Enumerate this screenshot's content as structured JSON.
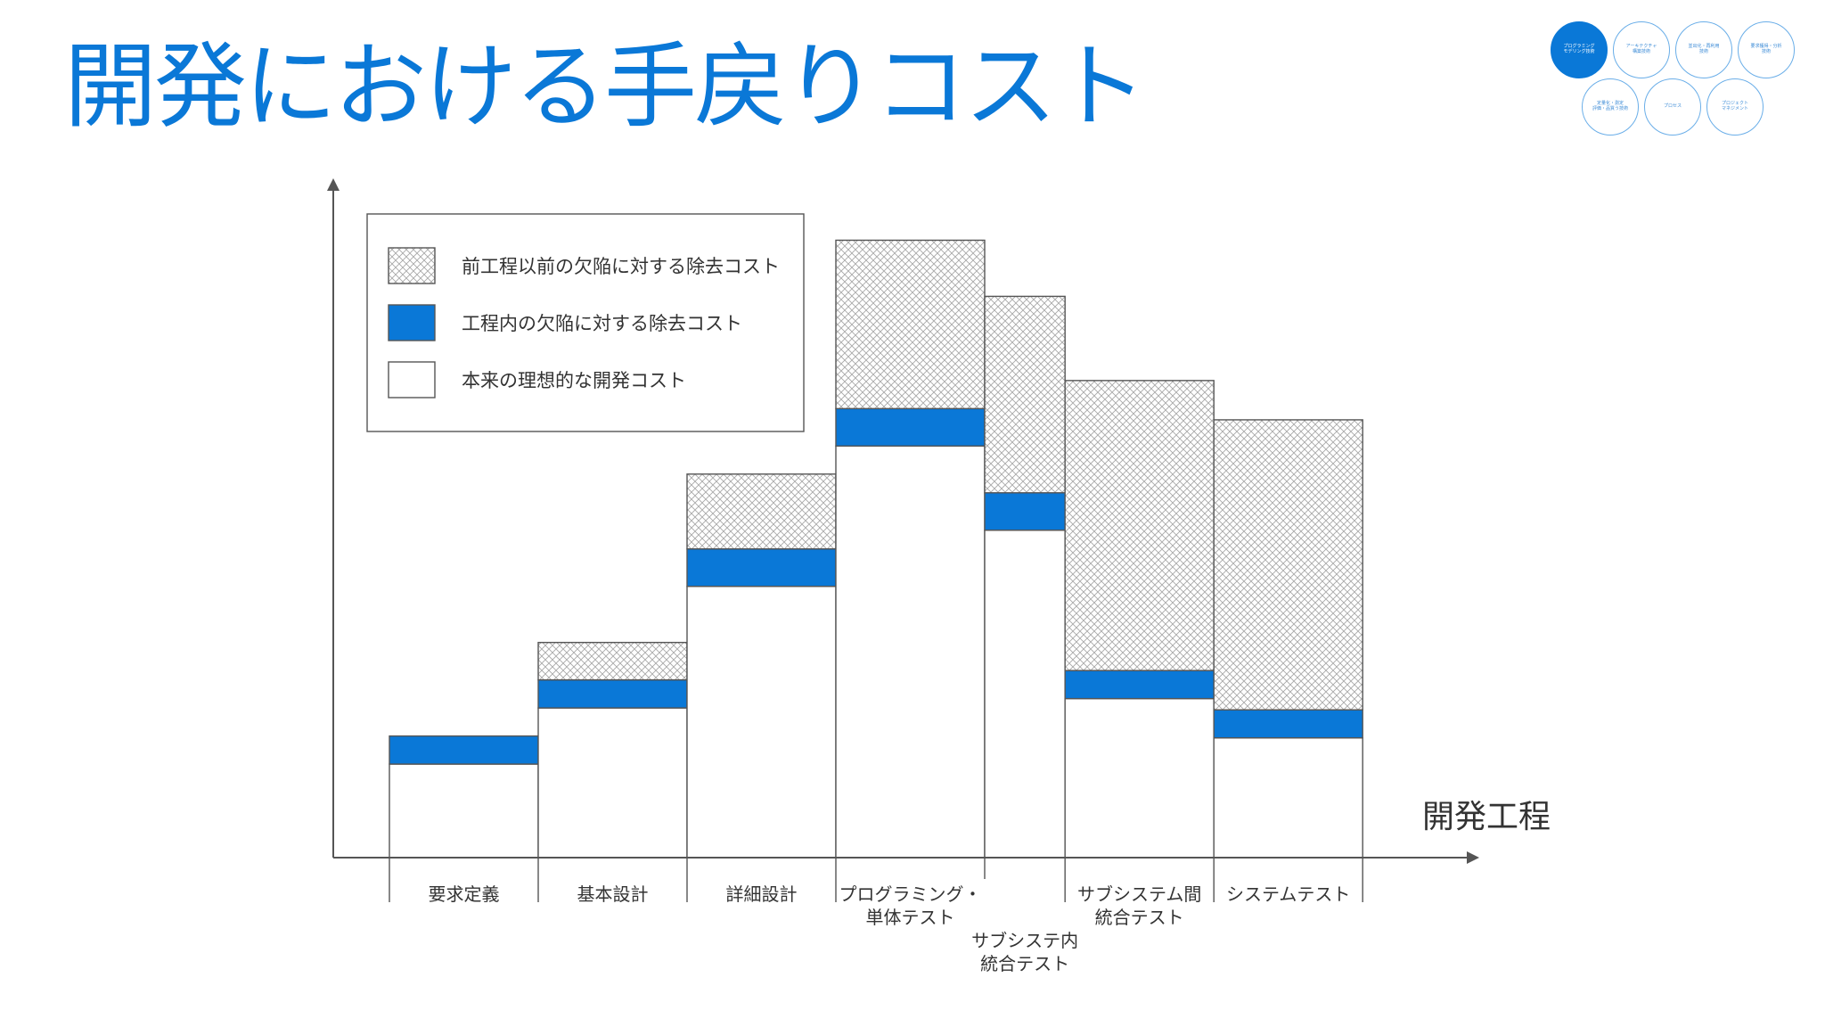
{
  "title": "開発における手戻りコスト",
  "nav": {
    "items": [
      {
        "label": "プログラミング\nモデリング技術",
        "active": true
      },
      {
        "label": "アーキテクチャ\n構築技術",
        "active": false
      },
      {
        "label": "並出化・再利用\n技術",
        "active": false
      },
      {
        "label": "要求獲得・分析\n技術",
        "active": false
      },
      {
        "label": "定量化・測定\n評価・品質う技術",
        "active": false
      },
      {
        "label": "プロセス",
        "active": false
      },
      {
        "label": "プロジェクト\nマネジメント",
        "active": false
      }
    ]
  },
  "colors": {
    "title": "#0a78d7",
    "blue": "#0a78d7",
    "hatch": "#9a9a9a",
    "line": "#555555",
    "text": "#333333"
  },
  "chart_data": {
    "type": "bar",
    "stacked": true,
    "xlabel": "開発工程",
    "ylabel": "",
    "grid": false,
    "legend_position": "top-left",
    "categories": [
      "要求定義",
      "基本設計",
      "詳細設計",
      "プログラミング・\n単体テスト",
      "サブシステ内\n統合テスト",
      "サブシステム間\n統合テスト",
      "システムテスト"
    ],
    "category_widths": [
      1,
      1,
      1,
      1,
      0.54,
      1,
      1
    ],
    "category_label_offsets": [
      0,
      0,
      0,
      0,
      1,
      0,
      0
    ],
    "series": [
      {
        "name": "本来の理想的な開発コスト",
        "style": "white",
        "values": [
          10,
          16,
          29,
          44,
          35,
          17,
          12.8
        ]
      },
      {
        "name": "工程内の欠陥に対する除去コスト",
        "style": "blue",
        "values": [
          3,
          3,
          4,
          4,
          4,
          3,
          3
        ]
      },
      {
        "name": "前工程以前の欠陥に対する除去コスト",
        "style": "hatch",
        "values": [
          0,
          4,
          8,
          18,
          21,
          31,
          31
        ]
      }
    ],
    "ylim": [
      0,
      71
    ]
  }
}
